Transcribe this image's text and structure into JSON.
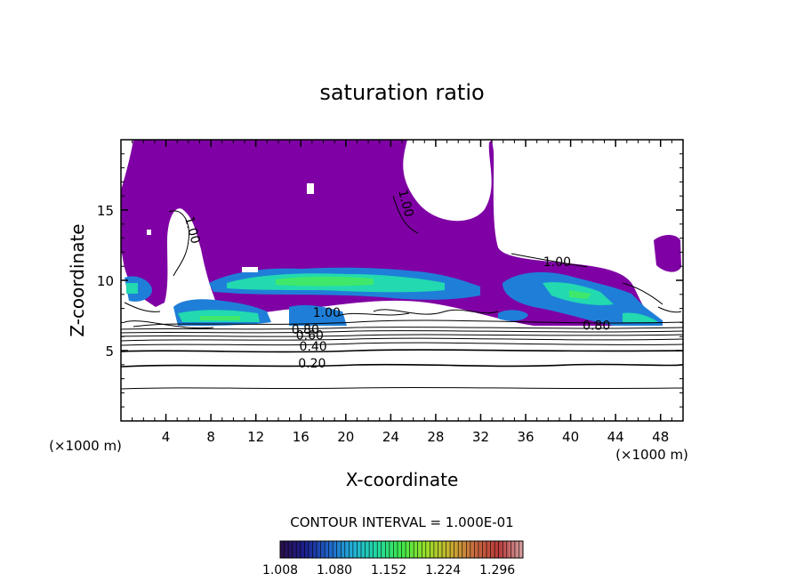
{
  "chart_data": {
    "type": "contour",
    "title": "saturation ratio",
    "xlabel": "X-coordinate",
    "ylabel": "Z-coordinate",
    "x_unit_label": "(×1000 m)",
    "z_unit_label": "(×1000 m)",
    "xlim": [
      0,
      50
    ],
    "ylim": [
      0,
      20
    ],
    "x_ticks": [
      4,
      8,
      12,
      16,
      20,
      24,
      28,
      32,
      36,
      40,
      44,
      48
    ],
    "y_ticks": [
      5,
      10,
      15
    ],
    "contour_interval_text": "CONTOUR INTERVAL = 1.000E-01",
    "contour_labels": [
      {
        "text": "0.20",
        "x": 17.0,
        "z": 3.8
      },
      {
        "text": "0.40",
        "x": 17.1,
        "z": 5.0
      },
      {
        "text": "0.60",
        "x": 16.8,
        "z": 5.8
      },
      {
        "text": "0.80",
        "x": 16.4,
        "z": 6.2
      },
      {
        "text": "1.00",
        "x": 18.3,
        "z": 7.4
      },
      {
        "text": "0.80",
        "x": 42.3,
        "z": 6.5
      },
      {
        "text": "1.00",
        "x": 25.0,
        "z": 15.4
      },
      {
        "text": "1.00",
        "x": 6.0,
        "z": 13.5
      },
      {
        "text": "1.00",
        "x": 38.8,
        "z": 11.0
      }
    ],
    "colorbar": {
      "range": [
        1.008,
        1.33
      ],
      "tick_labels": [
        "1.008",
        "1.080",
        "1.152",
        "1.224",
        "1.296"
      ],
      "colors": [
        "#2a0f4a",
        "#1c1f8c",
        "#1f63c8",
        "#22b0d8",
        "#22d9a0",
        "#3fe84a",
        "#9ae02a",
        "#c8b030",
        "#c86a40",
        "#b83a3a",
        "#d4a0a0"
      ]
    },
    "fill_colors": {
      "supersaturated_base": "#7f00a4",
      "cloud_low": "#1f7fd8",
      "cloud_mid": "#22d9b0",
      "cloud_high": "#3fe86a"
    }
  }
}
